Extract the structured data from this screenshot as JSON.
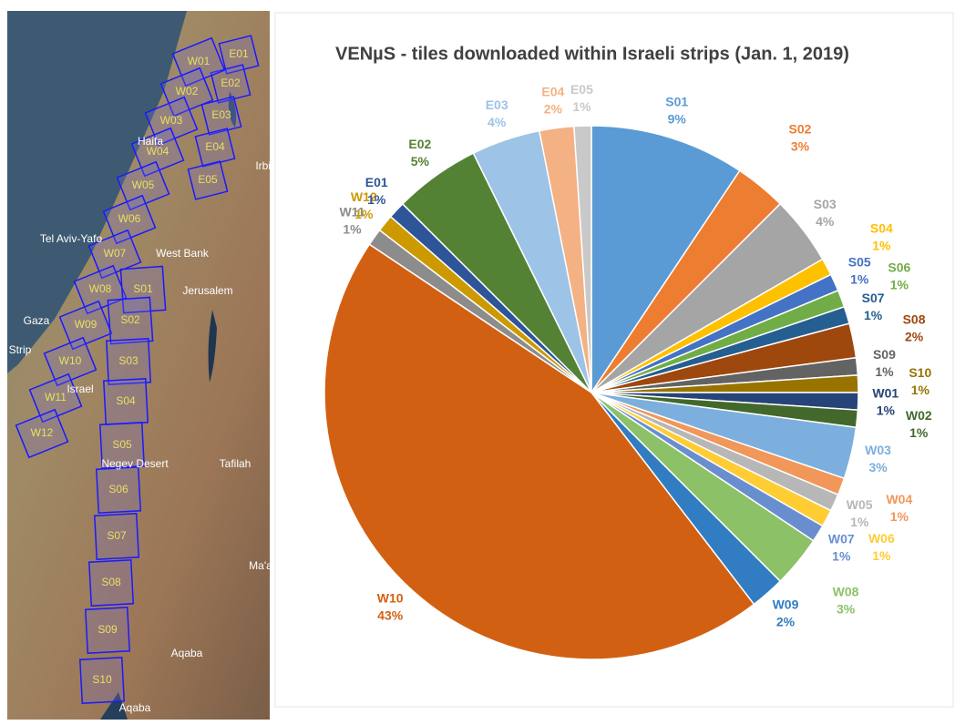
{
  "map": {
    "tiles": [
      "E01",
      "E02",
      "E03",
      "E04",
      "E05",
      "W01",
      "W02",
      "W03",
      "W04",
      "W05",
      "W06",
      "W07",
      "W08",
      "W09",
      "W10",
      "W11",
      "W12",
      "S01",
      "S02",
      "S03",
      "S04",
      "S05",
      "S06",
      "S07",
      "S08",
      "S09",
      "S10"
    ],
    "places": [
      "Haifa",
      "Tel Aviv-Yafo",
      "West Bank",
      "Jerusalem",
      "Gaza",
      "Strip",
      "Israel",
      "Negev Desert",
      "Irbid",
      "Tafilah",
      "Aqaba",
      "Aqaba",
      "Ma'a"
    ]
  },
  "chart_data": {
    "type": "pie",
    "title": "VENµS - tiles downloaded within Israeli strips (Jan. 1, 2019)",
    "categories": [
      "S01",
      "S02",
      "S03",
      "S04",
      "S05",
      "S06",
      "S07",
      "S08",
      "S09",
      "S10",
      "W01",
      "W02",
      "W03",
      "W04",
      "W05",
      "W06",
      "W07",
      "W08",
      "W09",
      "W10",
      "W11",
      "W12",
      "E01",
      "E02",
      "E03",
      "E04",
      "E05"
    ],
    "values": [
      9,
      3,
      4,
      1,
      1,
      1,
      1,
      2,
      1,
      1,
      1,
      1,
      3,
      1,
      1,
      1,
      1,
      3,
      2,
      43,
      1,
      1,
      1,
      5,
      4,
      2,
      1
    ],
    "value_labels": [
      "9%",
      "3%",
      "4%",
      "1%",
      "1%",
      "1%",
      "1%",
      "2%",
      "1%",
      "1%",
      "1%",
      "1%",
      "3%",
      "1%",
      "1%",
      "1%",
      "1%",
      "3%",
      "2%",
      "43%",
      "1%",
      "1%",
      "1%",
      "5%",
      "4%",
      "2%",
      "1%"
    ],
    "colors": [
      "#5b9bd5",
      "#ed7d31",
      "#a5a5a5",
      "#ffc000",
      "#4472c4",
      "#70ad47",
      "#255e91",
      "#9e480e",
      "#636363",
      "#997300",
      "#264478",
      "#43682b",
      "#7cafdd",
      "#f1975a",
      "#b7b7b7",
      "#ffcd33",
      "#698ed0",
      "#8cc168",
      "#327dc2",
      "#d26012",
      "#8c8c8c",
      "#cc9a00",
      "#2e5597",
      "#548235",
      "#9dc3e6",
      "#f4b183",
      "#c9c9c9"
    ]
  }
}
